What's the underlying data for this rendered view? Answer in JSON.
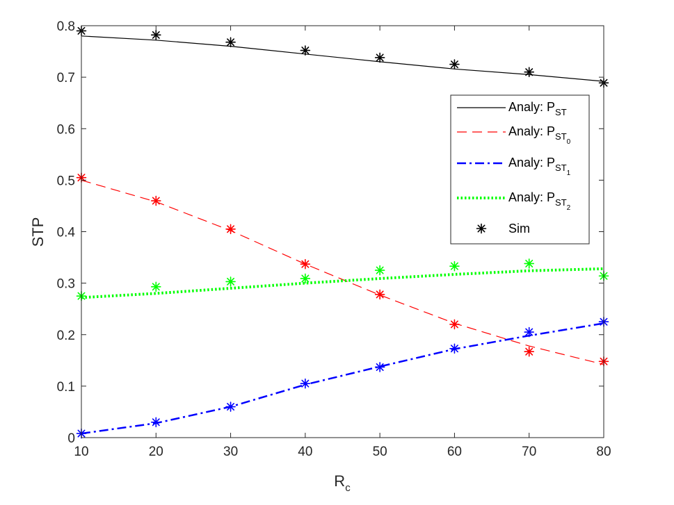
{
  "chart_data": {
    "type": "line",
    "xlabel": "R",
    "xlabel_sub": "c",
    "ylabel": "STP",
    "xlim": [
      10,
      80
    ],
    "ylim": [
      0,
      0.8
    ],
    "xticks": [
      10,
      20,
      30,
      40,
      50,
      60,
      70,
      80
    ],
    "xtick_labels": [
      "10",
      "20",
      "30",
      "40",
      "50",
      "60",
      "70",
      "80"
    ],
    "yticks": [
      0,
      0.1,
      0.2,
      0.3,
      0.4,
      0.5,
      0.6,
      0.7,
      0.8
    ],
    "ytick_labels": [
      "0",
      "0.1",
      "0.2",
      "0.3",
      "0.4",
      "0.5",
      "0.6",
      "0.7",
      "0.8"
    ],
    "grid": false,
    "legend_position": "right",
    "series": [
      {
        "legend_label": "Analy: P",
        "legend_sub": "ST",
        "legend_subsub": "",
        "color": "#000000",
        "style": "solid",
        "x": [
          10,
          20,
          30,
          40,
          50,
          60,
          70,
          80
        ],
        "analytic": [
          0.78,
          0.772,
          0.76,
          0.745,
          0.73,
          0.716,
          0.705,
          0.692
        ],
        "sim": [
          0.79,
          0.782,
          0.768,
          0.752,
          0.738,
          0.725,
          0.71,
          0.689
        ]
      },
      {
        "legend_label": "Analy: P",
        "legend_sub": "ST",
        "legend_subsub": "0",
        "color": "#ff0000",
        "style": "dashed",
        "x": [
          10,
          20,
          30,
          40,
          50,
          60,
          70,
          80
        ],
        "analytic": [
          0.5,
          0.458,
          0.402,
          0.337,
          0.277,
          0.222,
          0.178,
          0.142
        ],
        "sim": [
          0.505,
          0.46,
          0.405,
          0.337,
          0.278,
          0.22,
          0.167,
          0.148
        ]
      },
      {
        "legend_label": "Analy: P",
        "legend_sub": "ST",
        "legend_subsub": "1",
        "color": "#0000ff",
        "style": "dashdot",
        "x": [
          10,
          20,
          30,
          40,
          50,
          60,
          70,
          80
        ],
        "analytic": [
          0.008,
          0.028,
          0.06,
          0.103,
          0.138,
          0.172,
          0.198,
          0.222
        ],
        "sim": [
          0.008,
          0.03,
          0.06,
          0.105,
          0.137,
          0.173,
          0.205,
          0.225
        ]
      },
      {
        "legend_label": "Analy: P",
        "legend_sub": "ST",
        "legend_subsub": "2",
        "color": "#00ff00",
        "style": "dotted",
        "x": [
          10,
          20,
          30,
          40,
          50,
          60,
          70,
          80
        ],
        "analytic": [
          0.272,
          0.28,
          0.29,
          0.3,
          0.309,
          0.317,
          0.324,
          0.328
        ],
        "sim": [
          0.275,
          0.293,
          0.303,
          0.309,
          0.325,
          0.333,
          0.338,
          0.314
        ]
      }
    ],
    "sim_legend": {
      "label": "Sim",
      "color": "#000000",
      "marker": "asterisk"
    }
  }
}
